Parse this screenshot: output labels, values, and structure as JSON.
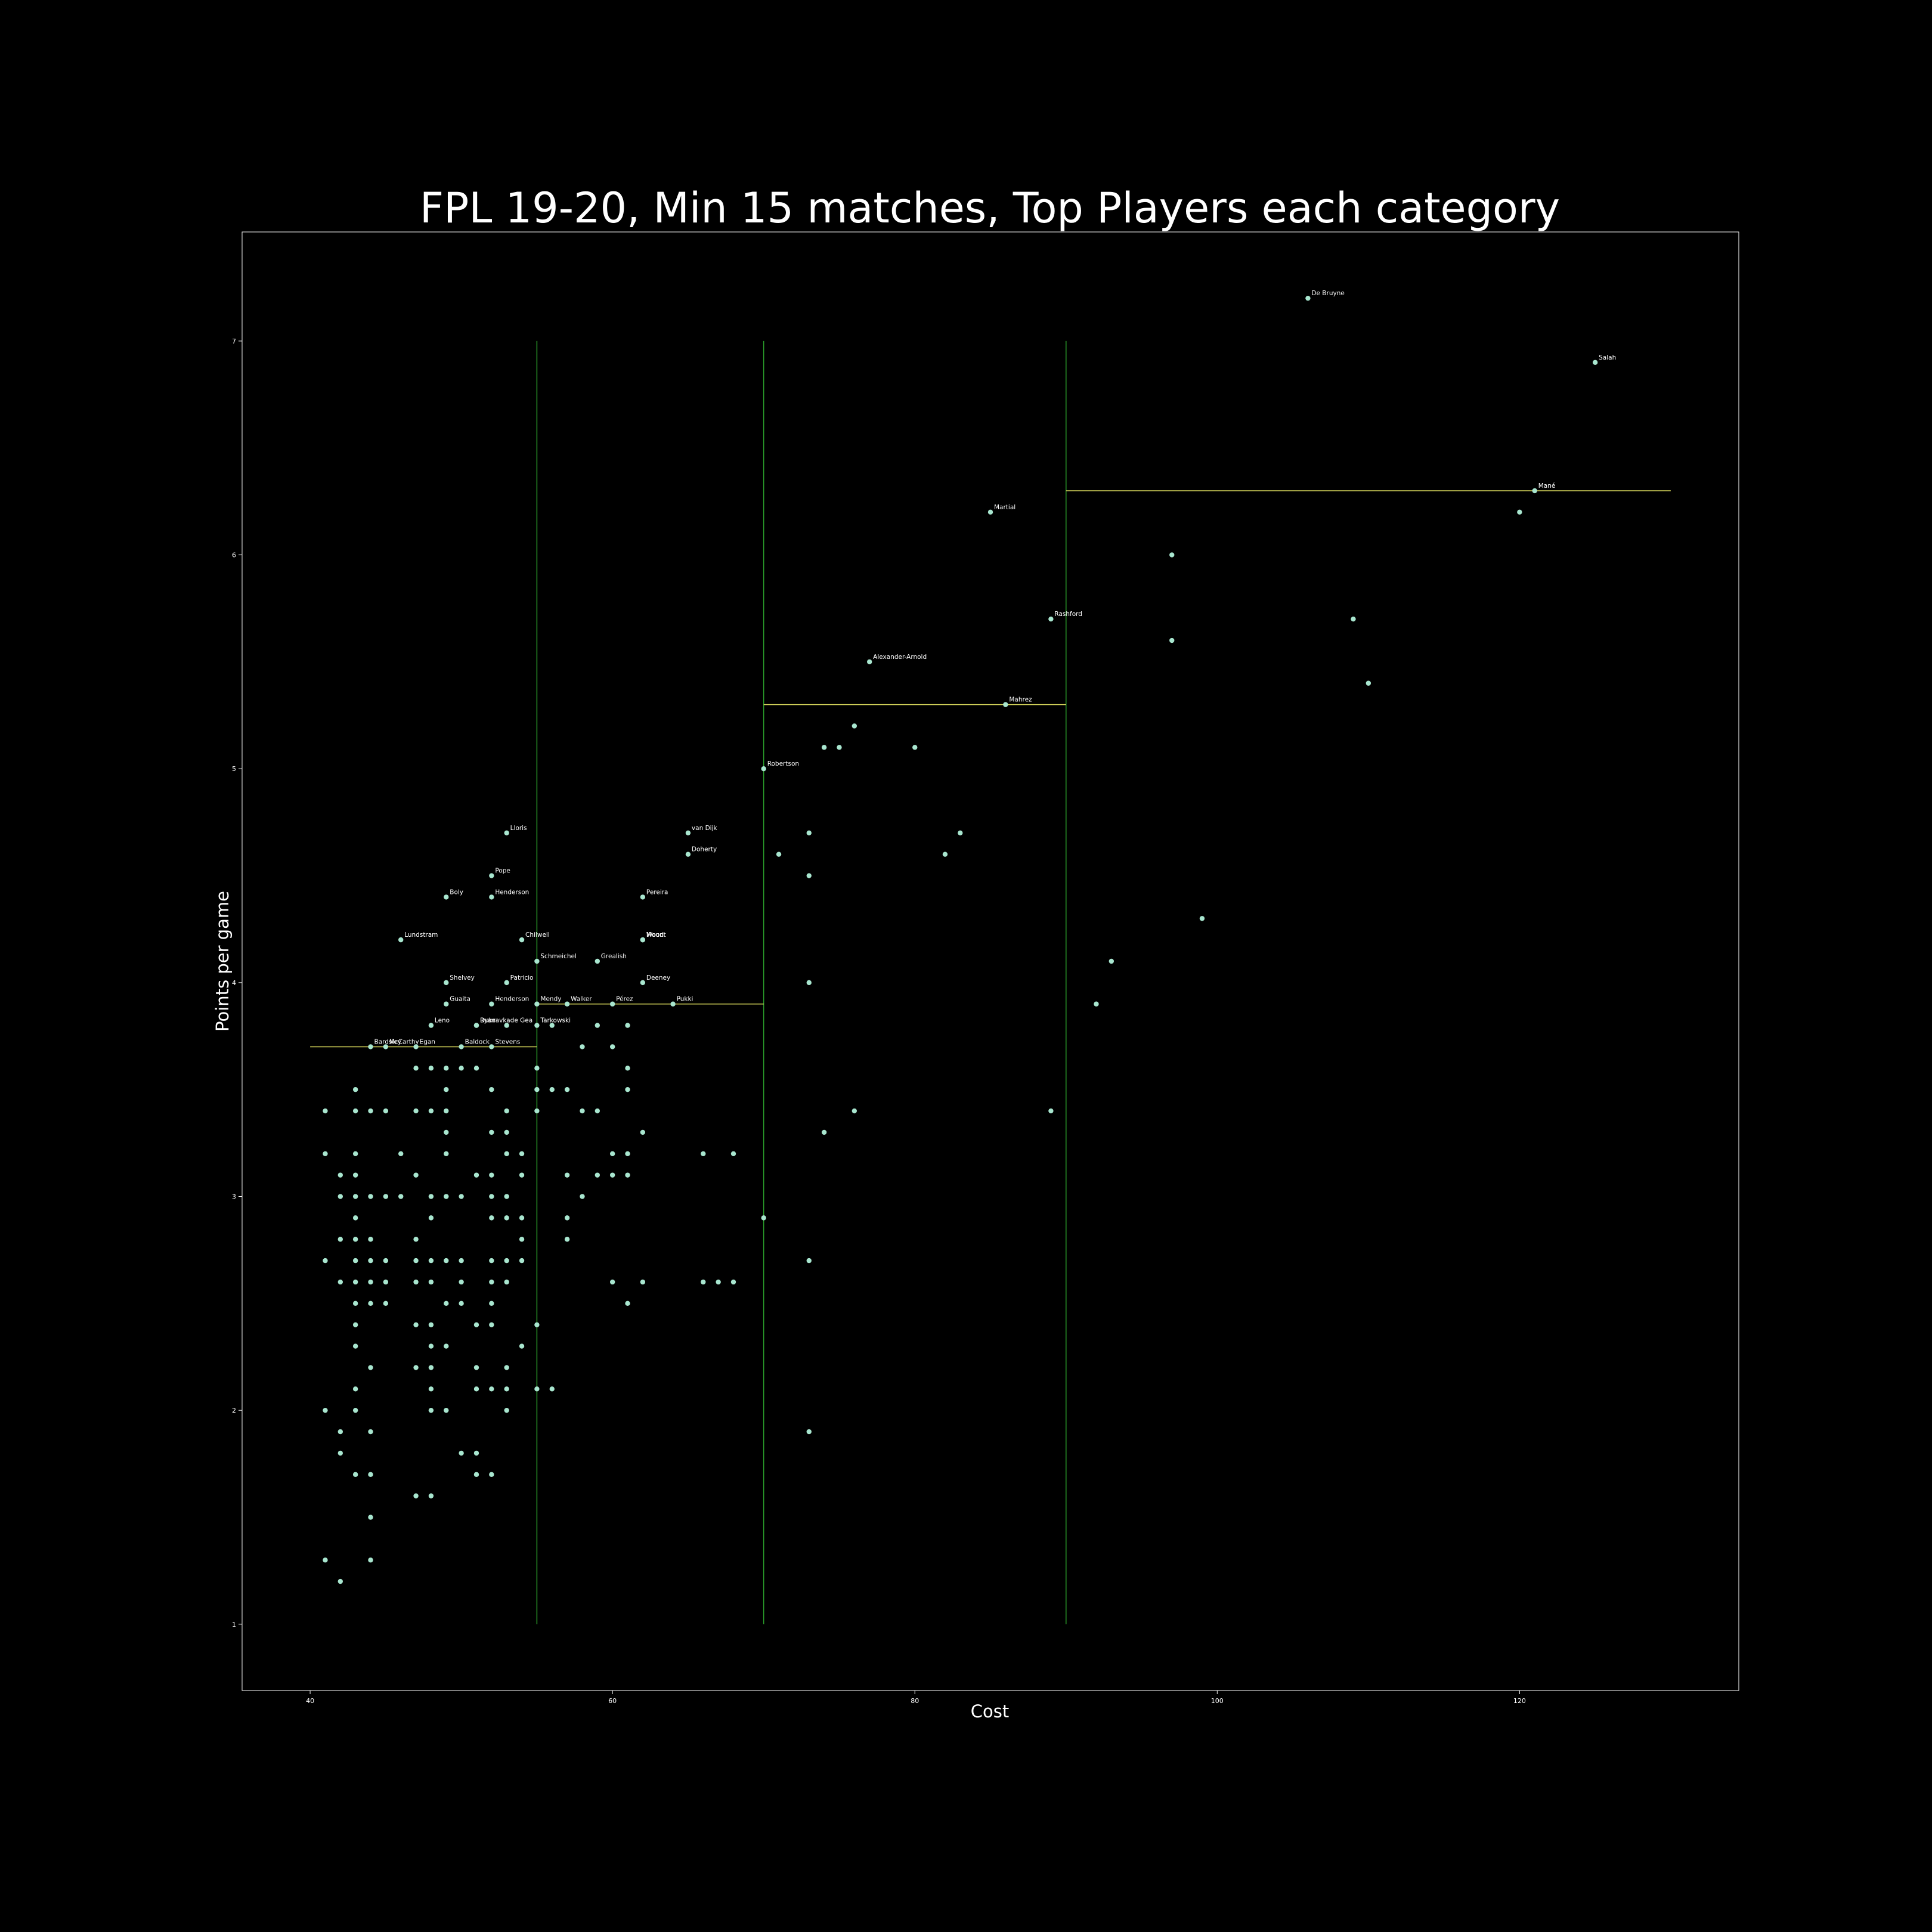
{
  "chart_data": {
    "type": "scatter",
    "title": "FPL 19-20, Min 15 matches, Top Players each category",
    "xlabel": "Cost",
    "ylabel": "Points per game",
    "xlim": [
      35.5,
      134.5
    ],
    "ylim": [
      0.69,
      7.51
    ],
    "xticks": [
      40,
      60,
      80,
      100,
      120
    ],
    "yticks": [
      1,
      2,
      3,
      4,
      5,
      6,
      7
    ],
    "grid": false,
    "colors": {
      "background": "#000000",
      "frame": "#ffffff",
      "point": "#a8e6cf",
      "category_boundary": "#2a9d2a",
      "category_threshold": "#d4d45a",
      "text": "#ffffff"
    },
    "category_boundaries": [
      {
        "x": 55,
        "y_range": [
          1,
          7
        ]
      },
      {
        "x": 70,
        "y_range": [
          1,
          7
        ]
      },
      {
        "x": 90,
        "y_range": [
          1,
          7
        ]
      }
    ],
    "category_thresholds": [
      {
        "x_range": [
          40,
          55
        ],
        "y": 3.7
      },
      {
        "x_range": [
          55,
          70
        ],
        "y": 3.9
      },
      {
        "x_range": [
          70,
          90
        ],
        "y": 5.3
      },
      {
        "x_range": [
          90,
          130
        ],
        "y": 6.3
      }
    ],
    "labeled_points": [
      {
        "label": "De Bruyne",
        "x": 106,
        "y": 7.2
      },
      {
        "label": "Salah",
        "x": 125,
        "y": 6.9
      },
      {
        "label": "Mané",
        "x": 121,
        "y": 6.3
      },
      {
        "label": "Martial",
        "x": 85,
        "y": 6.2
      },
      {
        "label": "Rashford",
        "x": 89,
        "y": 5.7
      },
      {
        "label": "Alexander-Arnold",
        "x": 77,
        "y": 5.5
      },
      {
        "label": "Mahrez",
        "x": 86,
        "y": 5.3
      },
      {
        "label": "Robertson",
        "x": 70,
        "y": 5.0
      },
      {
        "label": "van Dijk",
        "x": 65,
        "y": 4.7
      },
      {
        "label": "Doherty",
        "x": 65,
        "y": 4.6
      },
      {
        "label": "Lloris",
        "x": 53,
        "y": 4.7
      },
      {
        "label": "Pope",
        "x": 52,
        "y": 4.5
      },
      {
        "label": "Boly",
        "x": 49,
        "y": 4.4
      },
      {
        "label": "Henderson",
        "x": 52,
        "y": 4.4
      },
      {
        "label": "Pereira",
        "x": 62,
        "y": 4.4
      },
      {
        "label": "Lundstram",
        "x": 46,
        "y": 4.2
      },
      {
        "label": "Chilwell",
        "x": 54,
        "y": 4.2
      },
      {
        "label": "Wood",
        "x": 62,
        "y": 4.2
      },
      {
        "label": "Mount",
        "x": 62,
        "y": 4.2
      },
      {
        "label": "Schmeichel",
        "x": 55,
        "y": 4.1
      },
      {
        "label": "Grealish",
        "x": 59,
        "y": 4.1
      },
      {
        "label": "Shelvey",
        "x": 49,
        "y": 4.0
      },
      {
        "label": "Patricio",
        "x": 53,
        "y": 4.0
      },
      {
        "label": "Deeney",
        "x": 62,
        "y": 4.0
      },
      {
        "label": "Guaita",
        "x": 49,
        "y": 3.9
      },
      {
        "label": "Henderson",
        "x": 52,
        "y": 3.9
      },
      {
        "label": "Mendy",
        "x": 55,
        "y": 3.9
      },
      {
        "label": "Walker",
        "x": 57,
        "y": 3.9
      },
      {
        "label": "Pérez",
        "x": 60,
        "y": 3.9
      },
      {
        "label": "Pukki",
        "x": 64,
        "y": 3.9
      },
      {
        "label": "Leno",
        "x": 48,
        "y": 3.8
      },
      {
        "label": "Ryan",
        "x": 51,
        "y": 3.8
      },
      {
        "label": "Dubravka",
        "x": 51,
        "y": 3.8
      },
      {
        "label": "de Gea",
        "x": 53,
        "y": 3.8
      },
      {
        "label": "Tarkowski",
        "x": 55,
        "y": 3.8
      },
      {
        "label": "Bardsley",
        "x": 44,
        "y": 3.7
      },
      {
        "label": "McCarthy",
        "x": 45,
        "y": 3.7
      },
      {
        "label": "Egan",
        "x": 47,
        "y": 3.7
      },
      {
        "label": "Baldock",
        "x": 50,
        "y": 3.7
      },
      {
        "label": "Stevens",
        "x": 52,
        "y": 3.7
      }
    ],
    "points": [
      [
        56,
        3.8
      ],
      [
        59,
        3.8
      ],
      [
        61,
        3.8
      ],
      [
        58,
        3.7
      ],
      [
        60,
        3.7
      ],
      [
        47,
        3.6
      ],
      [
        48,
        3.6
      ],
      [
        49,
        3.6
      ],
      [
        50,
        3.6
      ],
      [
        51,
        3.6
      ],
      [
        55,
        3.6
      ],
      [
        61,
        3.6
      ],
      [
        43,
        3.5
      ],
      [
        49,
        3.5
      ],
      [
        52,
        3.5
      ],
      [
        55,
        3.5
      ],
      [
        56,
        3.5
      ],
      [
        57,
        3.5
      ],
      [
        61,
        3.5
      ],
      [
        41,
        3.4
      ],
      [
        43,
        3.4
      ],
      [
        44,
        3.4
      ],
      [
        45,
        3.4
      ],
      [
        47,
        3.4
      ],
      [
        48,
        3.4
      ],
      [
        49,
        3.4
      ],
      [
        53,
        3.4
      ],
      [
        55,
        3.4
      ],
      [
        58,
        3.4
      ],
      [
        59,
        3.4
      ],
      [
        76,
        3.4
      ],
      [
        89,
        3.4
      ],
      [
        49,
        3.3
      ],
      [
        52,
        3.3
      ],
      [
        53,
        3.3
      ],
      [
        62,
        3.3
      ],
      [
        74,
        3.3
      ],
      [
        41,
        3.2
      ],
      [
        43,
        3.2
      ],
      [
        46,
        3.2
      ],
      [
        49,
        3.2
      ],
      [
        53,
        3.2
      ],
      [
        54,
        3.2
      ],
      [
        60,
        3.2
      ],
      [
        61,
        3.2
      ],
      [
        66,
        3.2
      ],
      [
        68,
        3.2
      ],
      [
        42,
        3.1
      ],
      [
        43,
        3.1
      ],
      [
        47,
        3.1
      ],
      [
        51,
        3.1
      ],
      [
        52,
        3.1
      ],
      [
        54,
        3.1
      ],
      [
        57,
        3.1
      ],
      [
        59,
        3.1
      ],
      [
        60,
        3.1
      ],
      [
        61,
        3.1
      ],
      [
        42,
        3.0
      ],
      [
        43,
        3.0
      ],
      [
        44,
        3.0
      ],
      [
        45,
        3.0
      ],
      [
        46,
        3.0
      ],
      [
        48,
        3.0
      ],
      [
        49,
        3.0
      ],
      [
        50,
        3.0
      ],
      [
        52,
        3.0
      ],
      [
        53,
        3.0
      ],
      [
        58,
        3.0
      ],
      [
        43,
        2.9
      ],
      [
        48,
        2.9
      ],
      [
        52,
        2.9
      ],
      [
        53,
        2.9
      ],
      [
        54,
        2.9
      ],
      [
        57,
        2.9
      ],
      [
        70,
        2.9
      ],
      [
        42,
        2.8
      ],
      [
        43,
        2.8
      ],
      [
        44,
        2.8
      ],
      [
        47,
        2.8
      ],
      [
        54,
        2.8
      ],
      [
        57,
        2.8
      ],
      [
        41,
        2.7
      ],
      [
        43,
        2.7
      ],
      [
        44,
        2.7
      ],
      [
        45,
        2.7
      ],
      [
        47,
        2.7
      ],
      [
        48,
        2.7
      ],
      [
        49,
        2.7
      ],
      [
        50,
        2.7
      ],
      [
        52,
        2.7
      ],
      [
        53,
        2.7
      ],
      [
        54,
        2.7
      ],
      [
        73,
        2.7
      ],
      [
        42,
        2.6
      ],
      [
        43,
        2.6
      ],
      [
        44,
        2.6
      ],
      [
        45,
        2.6
      ],
      [
        47,
        2.6
      ],
      [
        48,
        2.6
      ],
      [
        50,
        2.6
      ],
      [
        52,
        2.6
      ],
      [
        53,
        2.6
      ],
      [
        60,
        2.6
      ],
      [
        62,
        2.6
      ],
      [
        66,
        2.6
      ],
      [
        67,
        2.6
      ],
      [
        68,
        2.6
      ],
      [
        43,
        2.5
      ],
      [
        44,
        2.5
      ],
      [
        45,
        2.5
      ],
      [
        49,
        2.5
      ],
      [
        50,
        2.5
      ],
      [
        52,
        2.5
      ],
      [
        61,
        2.5
      ],
      [
        43,
        2.4
      ],
      [
        47,
        2.4
      ],
      [
        48,
        2.4
      ],
      [
        51,
        2.4
      ],
      [
        52,
        2.4
      ],
      [
        55,
        2.4
      ],
      [
        43,
        2.3
      ],
      [
        48,
        2.3
      ],
      [
        49,
        2.3
      ],
      [
        54,
        2.3
      ],
      [
        44,
        2.2
      ],
      [
        47,
        2.2
      ],
      [
        48,
        2.2
      ],
      [
        51,
        2.2
      ],
      [
        53,
        2.2
      ],
      [
        43,
        2.1
      ],
      [
        48,
        2.1
      ],
      [
        51,
        2.1
      ],
      [
        52,
        2.1
      ],
      [
        53,
        2.1
      ],
      [
        55,
        2.1
      ],
      [
        56,
        2.1
      ],
      [
        41,
        2.0
      ],
      [
        43,
        2.0
      ],
      [
        48,
        2.0
      ],
      [
        49,
        2.0
      ],
      [
        53,
        2.0
      ],
      [
        42,
        1.9
      ],
      [
        44,
        1.9
      ],
      [
        73,
        1.9
      ],
      [
        42,
        1.8
      ],
      [
        50,
        1.8
      ],
      [
        51,
        1.8
      ],
      [
        43,
        1.7
      ],
      [
        44,
        1.7
      ],
      [
        51,
        1.7
      ],
      [
        52,
        1.7
      ],
      [
        47,
        1.6
      ],
      [
        48,
        1.6
      ],
      [
        44,
        1.5
      ],
      [
        41,
        1.3
      ],
      [
        44,
        1.3
      ],
      [
        42,
        1.2
      ],
      [
        73,
        4.0
      ],
      [
        73,
        4.5
      ],
      [
        73,
        4.7
      ],
      [
        71,
        4.6
      ],
      [
        74,
        5.1
      ],
      [
        75,
        5.1
      ],
      [
        76,
        5.2
      ],
      [
        80,
        5.1
      ],
      [
        82,
        4.6
      ],
      [
        83,
        4.7
      ],
      [
        97,
        6.0
      ],
      [
        97,
        5.6
      ],
      [
        99,
        4.3
      ],
      [
        93,
        4.1
      ],
      [
        92,
        3.9
      ],
      [
        109,
        5.7
      ],
      [
        110,
        5.4
      ],
      [
        120,
        6.2
      ]
    ]
  }
}
